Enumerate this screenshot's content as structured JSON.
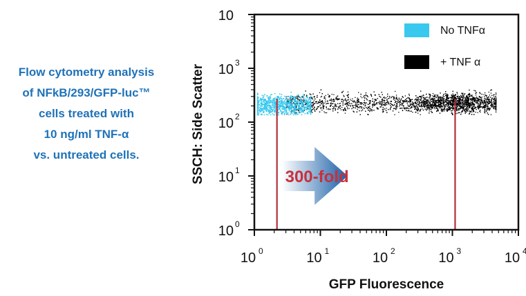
{
  "caption": {
    "lines": [
      "Flow cytometry analysis",
      "of NFkB/293/GFP-luc™",
      "cells treated with",
      "10 ng/ml TNF-α",
      "vs. untreated cells."
    ]
  },
  "colors": {
    "caption": "#1f72b8",
    "untreated": "#39c8ee",
    "treated": "#000000",
    "marker": "#b0303c",
    "fold_text": "#c8303c",
    "arrow_start": "#ffffff",
    "arrow_end": "#1a5fa8"
  },
  "chart_data": {
    "type": "scatter",
    "xlabel": "GFP Fluorescence",
    "ylabel": "SSCH: Side Scatter",
    "x_scale": "log",
    "y_scale": "log",
    "xlim": [
      1,
      10000
    ],
    "ylim": [
      1,
      10000
    ],
    "x_ticks": [
      {
        "base": "10",
        "exp": "0"
      },
      {
        "base": "10",
        "exp": "1"
      },
      {
        "base": "10",
        "exp": "2"
      },
      {
        "base": "10",
        "exp": "3"
      },
      {
        "base": "10",
        "exp": "4"
      }
    ],
    "y_ticks": [
      {
        "base": "10",
        "exp": "0"
      },
      {
        "base": "10",
        "exp": "1"
      },
      {
        "base": "10",
        "exp": "2"
      },
      {
        "base": "10",
        "exp": "3"
      },
      {
        "base": "10",
        "exp": ""
      }
    ],
    "legend": {
      "position": "top-right",
      "entries": [
        {
          "label": "No TNFα",
          "color": "#39c8ee"
        },
        {
          "label": "+ TNF α",
          "color": "#000000"
        }
      ]
    },
    "series": [
      {
        "name": "No TNFα",
        "color": "#39c8ee",
        "x_range": [
          1.1,
          7
        ],
        "y_range": [
          140,
          450
        ],
        "x_mode": 2.2,
        "y_mode": 210
      },
      {
        "name": "+ TNF α",
        "color": "#000000",
        "x_range": [
          3,
          4500
        ],
        "y_range": [
          140,
          450
        ],
        "x_mode": 1100,
        "y_mode": 230
      }
    ],
    "markers": [
      {
        "x": 2.2,
        "y_range": [
          1,
          270
        ]
      },
      {
        "x": 1100,
        "y_range": [
          1,
          270
        ]
      }
    ],
    "annotation": {
      "text": "300-fold",
      "x_range": [
        2.6,
        26
      ],
      "y": 10
    }
  }
}
